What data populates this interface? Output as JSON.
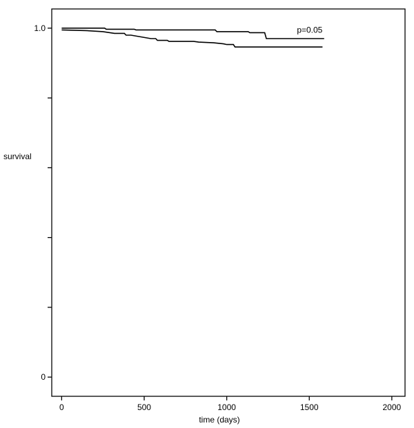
{
  "chart_data": {
    "type": "line",
    "title": "",
    "xlabel": "time (days)",
    "ylabel": "survival",
    "xlim": [
      -60,
      2080
    ],
    "ylim": [
      -0.055,
      1.055
    ],
    "x_ticks": [
      0,
      500,
      1000,
      1500,
      2000
    ],
    "x_tick_labels": [
      "0",
      "500",
      "1000",
      "1500",
      "2000"
    ],
    "y_ticks": [
      0,
      0.2,
      0.4,
      0.6,
      0.8,
      1.0
    ],
    "y_tick_labels": [
      "0",
      "",
      "",
      "",
      "",
      "1.0"
    ],
    "grid": false,
    "annotation": {
      "text": "p=0.05",
      "x": 1580,
      "y": 0.995
    },
    "series": [
      {
        "x": [
          0,
          260,
          270,
          440,
          450,
          930,
          940,
          1130,
          1140,
          1230,
          1240,
          1590
        ],
        "y": [
          1.0,
          1.0,
          0.997,
          0.997,
          0.995,
          0.995,
          0.99,
          0.99,
          0.987,
          0.987,
          0.97,
          0.97
        ]
      },
      {
        "x": [
          0,
          150,
          250,
          320,
          380,
          390,
          420,
          480,
          540,
          570,
          580,
          640,
          650,
          800,
          830,
          920,
          980,
          1000,
          1040,
          1050,
          1580
        ],
        "y": [
          0.995,
          0.993,
          0.99,
          0.985,
          0.985,
          0.98,
          0.98,
          0.975,
          0.97,
          0.97,
          0.965,
          0.965,
          0.962,
          0.962,
          0.96,
          0.958,
          0.955,
          0.953,
          0.953,
          0.946,
          0.946
        ]
      }
    ]
  }
}
